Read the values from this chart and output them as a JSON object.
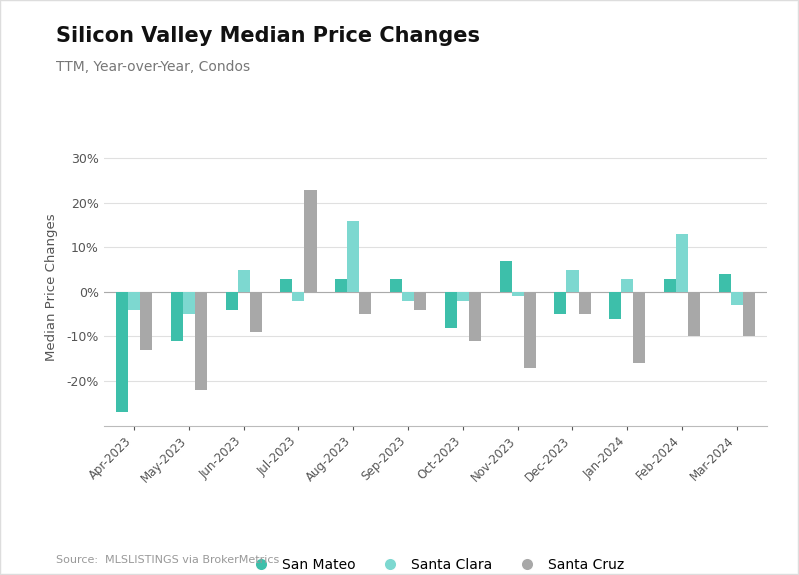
{
  "title": "Silicon Valley Median Price Changes",
  "subtitle": "TTM, Year-over-Year, Condos",
  "ylabel": "Median Price Changes",
  "source": "Source:  MLSLISTINGS via BrokerMetrics",
  "categories": [
    "Apr-2023",
    "May-2023",
    "Jun-2023",
    "Jul-2023",
    "Aug-2023",
    "Sep-2023",
    "Oct-2023",
    "Nov-2023",
    "Dec-2023",
    "Jan-2024",
    "Feb-2024",
    "Mar-2024"
  ],
  "san_mateo": [
    -27,
    -11,
    -4,
    3,
    3,
    3,
    -8,
    7,
    -5,
    -6,
    3,
    4
  ],
  "santa_clara": [
    -4,
    -5,
    5,
    -2,
    16,
    -2,
    -2,
    -1,
    5,
    3,
    13,
    -3
  ],
  "santa_cruz": [
    -13,
    -22,
    -9,
    23,
    -5,
    -4,
    -11,
    -17,
    -5,
    -16,
    -10,
    -10
  ],
  "color_san_mateo": "#3dbfaa",
  "color_santa_clara": "#7dd8d0",
  "color_santa_cruz": "#a8a8a8",
  "ylim": [
    -30,
    32
  ],
  "yticks": [
    -20,
    -10,
    0,
    10,
    20,
    30
  ],
  "background_color": "#ffffff",
  "title_fontsize": 15,
  "subtitle_fontsize": 10,
  "bar_width": 0.22
}
